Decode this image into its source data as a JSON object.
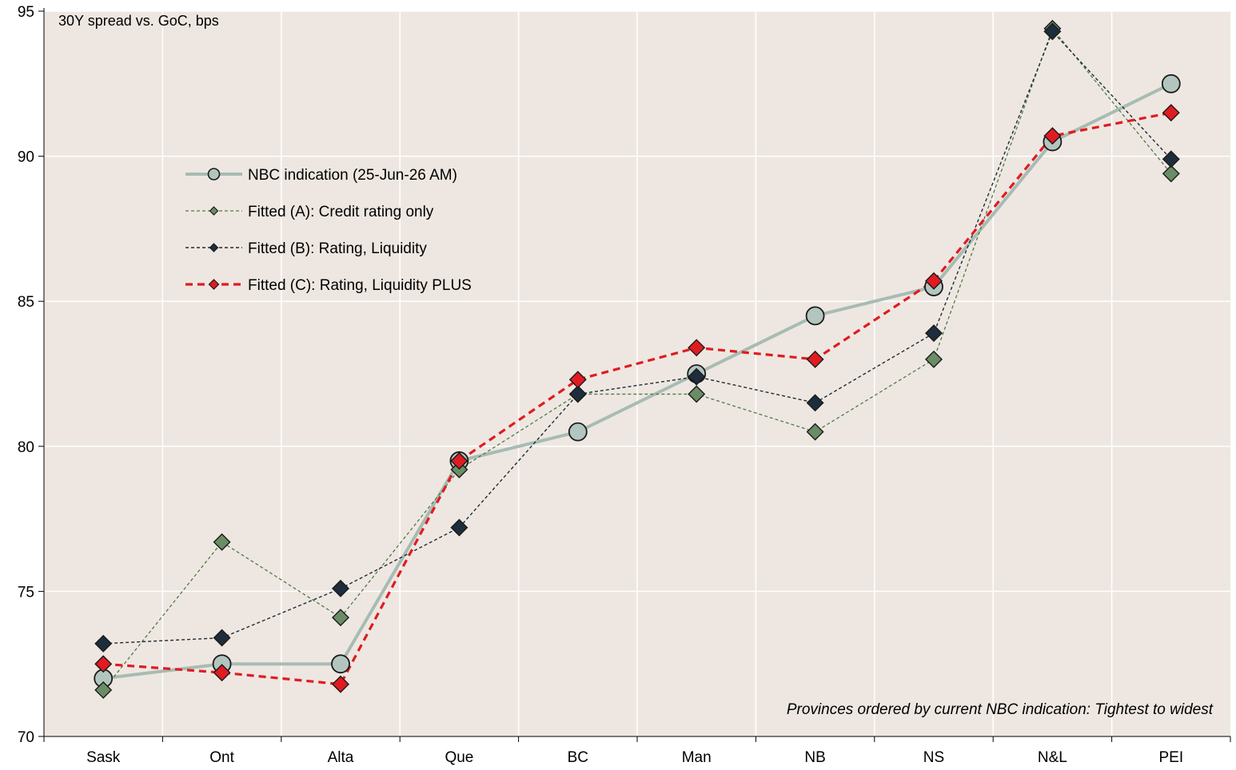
{
  "chart_data": {
    "type": "line",
    "title": "",
    "xlabel": "",
    "ylabel": "30Y spread vs. GoC, bps",
    "ylim": [
      70,
      95
    ],
    "yticks": [
      70,
      75,
      80,
      85,
      90,
      95
    ],
    "categories": [
      "Sask",
      "Ont",
      "Alta",
      "Que",
      "BC",
      "Man",
      "NB",
      "NS",
      "N&L",
      "PEI"
    ],
    "grid": true,
    "legend_position": "upper-left",
    "annotation": "Provinces ordered by current NBC indication: Tightest to widest",
    "plot_background": "#EEE7E1",
    "series": [
      {
        "name": "NBC indication (25-Jun-26 AM)",
        "values": [
          72.0,
          72.5,
          72.5,
          79.5,
          80.5,
          82.5,
          84.5,
          85.5,
          90.5,
          92.5
        ],
        "marker": "circle",
        "line_style": "solid",
        "line_color": "#A7BCB3",
        "marker_color": "#B2C6BF"
      },
      {
        "name": "Fitted (A): Credit rating only",
        "values": [
          71.6,
          76.7,
          74.1,
          79.2,
          81.8,
          81.8,
          80.5,
          83.0,
          94.4,
          89.4
        ],
        "marker": "diamond",
        "line_style": "dashed",
        "line_color": "#4E7A48",
        "marker_color": "#6A8D66"
      },
      {
        "name": "Fitted (B): Rating, Liquidity",
        "values": [
          73.2,
          73.4,
          75.1,
          77.2,
          81.8,
          82.4,
          81.5,
          83.9,
          94.3,
          89.9
        ],
        "marker": "diamond",
        "line_style": "dashed",
        "line_color": "#1E2A35",
        "marker_color": "#1E2D3B"
      },
      {
        "name": "Fitted (C): Rating, Liquidity PLUS",
        "values": [
          72.5,
          72.2,
          71.8,
          79.5,
          82.3,
          83.4,
          83.0,
          85.7,
          90.7,
          91.5
        ],
        "marker": "diamond",
        "line_style": "dashed",
        "line_color": "#E01B22",
        "marker_color": "#E01B22"
      }
    ]
  }
}
